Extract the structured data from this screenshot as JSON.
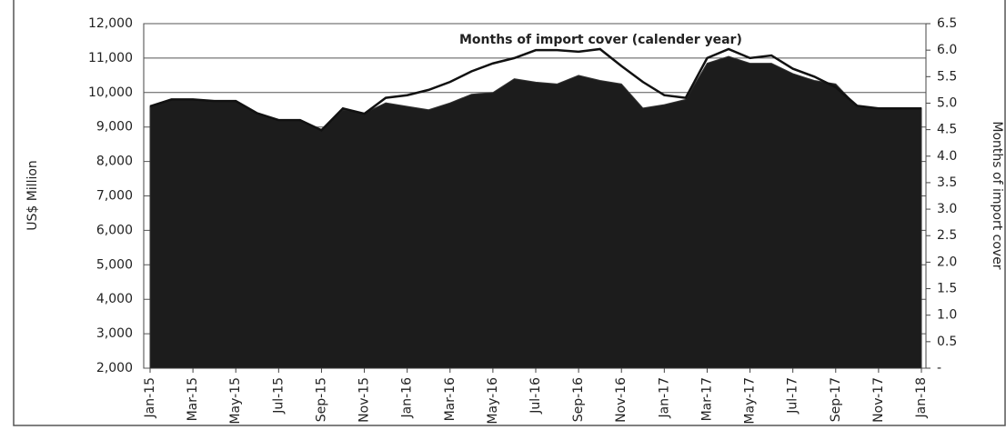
{
  "chart_data": {
    "type": "area-line",
    "categories": [
      "Jan-15",
      null,
      "Mar-15",
      null,
      "May-15",
      null,
      "Jul-15",
      null,
      "Sep-15",
      null,
      "Nov-15",
      null,
      "Jan-16",
      null,
      "Mar-16",
      null,
      "May-16",
      null,
      "Jul-16",
      null,
      "Sep-16",
      null,
      "Nov-16",
      null,
      "Jan-17",
      null,
      "Mar-17",
      null,
      "May-17",
      null,
      "Jul-17",
      null,
      "Sep-17",
      null,
      "Nov-17",
      null,
      "Jan-18"
    ],
    "series": [
      {
        "type": "area",
        "color": "#1c1c1c",
        "values": [
          9600,
          9800,
          9800,
          9750,
          9750,
          9400,
          9200,
          9200,
          8900,
          9500,
          9400,
          9700,
          9600,
          9500,
          9700,
          9950,
          10000,
          10400,
          10300,
          10250,
          10500,
          10350,
          10250,
          9550,
          9650,
          9800,
          10850,
          11050,
          10850,
          10850,
          10550,
          10350,
          10250,
          9600,
          9550,
          9550,
          9550
        ]
      },
      {
        "type": "line",
        "name": "Months of import cover (calender year)",
        "color": "#111111",
        "axis": "y2",
        "values": [
          4.94,
          5.07,
          5.07,
          5.04,
          5.04,
          4.81,
          4.68,
          4.68,
          4.49,
          4.9,
          4.8,
          5.1,
          5.15,
          5.25,
          5.4,
          5.6,
          5.75,
          5.85,
          6.0,
          6.0,
          5.97,
          6.02,
          5.7,
          5.4,
          5.15,
          5.1,
          5.85,
          6.02,
          5.85,
          5.9,
          5.65,
          5.5,
          5.3,
          4.95,
          4.9,
          4.9,
          4.9
        ]
      }
    ],
    "y_label": "US$ Million",
    "y2_label": "Months of import cover",
    "ylim": [
      2000,
      12000
    ],
    "yticks": [
      {
        "value": 2000,
        "label": "2,000"
      },
      {
        "value": 3000,
        "label": "3,000"
      },
      {
        "value": 4000,
        "label": "4,000"
      },
      {
        "value": 5000,
        "label": "5,000"
      },
      {
        "value": 6000,
        "label": "6,000"
      },
      {
        "value": 7000,
        "label": "7,000"
      },
      {
        "value": 8000,
        "label": "8,000"
      },
      {
        "value": 9000,
        "label": "9,000"
      },
      {
        "value": 10000,
        "label": "10,000"
      },
      {
        "value": 11000,
        "label": "11,000"
      },
      {
        "value": 12000,
        "label": "12,000"
      }
    ],
    "y2lim": [
      0,
      6.5
    ],
    "y2ticks": [
      {
        "value": 0,
        "label": "-"
      },
      0.5,
      {
        "value": 1,
        "label": "1.0"
      },
      1.5,
      {
        "value": 2,
        "label": "2.0"
      },
      2.5,
      {
        "value": 3,
        "label": "3.0"
      },
      3.5,
      {
        "value": 4,
        "label": "4.0"
      },
      4.5,
      {
        "value": 5,
        "label": "5.0"
      },
      5.5,
      {
        "value": 6,
        "label": "6.0"
      },
      6.5
    ],
    "grid": true
  }
}
